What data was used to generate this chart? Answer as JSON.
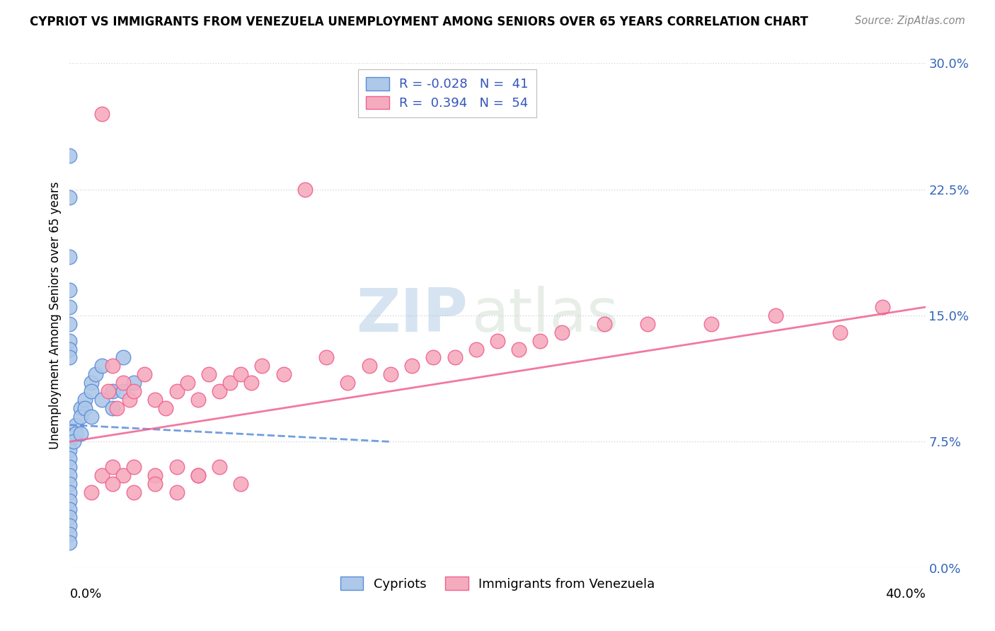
{
  "title": "CYPRIOT VS IMMIGRANTS FROM VENEZUELA UNEMPLOYMENT AMONG SENIORS OVER 65 YEARS CORRELATION CHART",
  "source": "Source: ZipAtlas.com",
  "ylabel": "Unemployment Among Seniors over 65 years",
  "ytick_values": [
    0.0,
    7.5,
    15.0,
    22.5,
    30.0
  ],
  "xlim": [
    0.0,
    40.0
  ],
  "ylim": [
    0.0,
    30.0
  ],
  "color_cypriot": "#adc8e8",
  "color_venezuela": "#f5abbe",
  "line_cypriot": "#5b8dd9",
  "line_venezuela": "#f06090",
  "cypriot_x": [
    0.0,
    0.0,
    0.0,
    0.0,
    0.0,
    0.0,
    0.0,
    0.0,
    0.0,
    0.0,
    0.0,
    0.0,
    0.0,
    0.3,
    0.3,
    0.5,
    0.5,
    0.7,
    0.7,
    1.0,
    1.0,
    1.2,
    1.5,
    2.0,
    2.5,
    0.0,
    0.0,
    0.0,
    0.0,
    0.0,
    0.0,
    0.0,
    0.0,
    0.2,
    0.5,
    1.0,
    1.5,
    2.0,
    2.5,
    3.0,
    0.0
  ],
  "cypriot_y": [
    7.5,
    7.0,
    6.5,
    6.0,
    5.5,
    5.0,
    4.5,
    4.0,
    3.5,
    3.0,
    2.5,
    2.0,
    1.5,
    8.5,
    8.0,
    9.5,
    9.0,
    10.0,
    9.5,
    11.0,
    10.5,
    11.5,
    12.0,
    10.5,
    12.5,
    24.5,
    22.0,
    18.5,
    16.5,
    15.5,
    14.5,
    13.5,
    13.0,
    7.5,
    8.0,
    9.0,
    10.0,
    9.5,
    10.5,
    11.0,
    12.5
  ],
  "venezuela_x": [
    1.5,
    1.8,
    2.0,
    2.2,
    2.5,
    2.8,
    3.0,
    3.5,
    4.0,
    4.5,
    5.0,
    5.5,
    6.0,
    6.5,
    7.0,
    7.5,
    8.0,
    8.5,
    9.0,
    10.0,
    11.0,
    12.0,
    13.0,
    14.0,
    15.0,
    16.0,
    17.0,
    18.0,
    19.0,
    20.0,
    21.0,
    22.0,
    23.0,
    25.0,
    27.0,
    30.0,
    33.0,
    36.0,
    38.0,
    1.5,
    2.0,
    2.5,
    3.0,
    4.0,
    5.0,
    6.0,
    7.0,
    8.0,
    1.0,
    2.0,
    3.0,
    4.0,
    5.0,
    6.0
  ],
  "venezuela_y": [
    27.0,
    10.5,
    12.0,
    9.5,
    11.0,
    10.0,
    10.5,
    11.5,
    10.0,
    9.5,
    10.5,
    11.0,
    10.0,
    11.5,
    10.5,
    11.0,
    11.5,
    11.0,
    12.0,
    11.5,
    22.5,
    12.5,
    11.0,
    12.0,
    11.5,
    12.0,
    12.5,
    12.5,
    13.0,
    13.5,
    13.0,
    13.5,
    14.0,
    14.5,
    14.5,
    14.5,
    15.0,
    14.0,
    15.5,
    5.5,
    6.0,
    5.5,
    6.0,
    5.5,
    6.0,
    5.5,
    6.0,
    5.0,
    4.5,
    5.0,
    4.5,
    5.0,
    4.5,
    5.5
  ],
  "cy_trend_x": [
    0.0,
    15.0
  ],
  "cy_trend_y": [
    8.5,
    7.5
  ],
  "ven_trend_x": [
    0.0,
    40.0
  ],
  "ven_trend_y": [
    7.5,
    15.5
  ],
  "watermark_zip": "ZIP",
  "watermark_atlas": "atlas",
  "legend_items": [
    {
      "label": "R = -0.028   N =  41",
      "color": "#adc8e8",
      "edge": "#5b8dd9"
    },
    {
      "label": "R =  0.394   N =  54",
      "color": "#f5abbe",
      "edge": "#f06090"
    }
  ],
  "bottom_legend": [
    {
      "label": "Cypriots",
      "color": "#adc8e8",
      "edge": "#5b8dd9"
    },
    {
      "label": "Immigrants from Venezuela",
      "color": "#f5abbe",
      "edge": "#f06090"
    }
  ]
}
